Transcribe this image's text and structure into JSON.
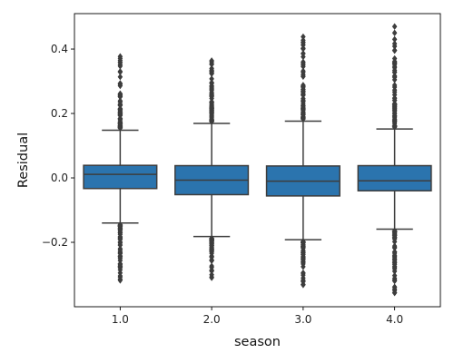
{
  "chart_data": {
    "type": "boxplot",
    "title": "",
    "xlabel": "season",
    "ylabel": "Residual",
    "categories": [
      "1.0",
      "2.0",
      "3.0",
      "4.0"
    ],
    "ylim": [
      -0.4,
      0.51
    ],
    "yticks": [
      -0.2,
      0.0,
      0.2,
      0.4
    ],
    "ytick_labels": [
      "−0.2",
      "0.0",
      "0.2",
      "0.4"
    ],
    "grid": false,
    "legend": "none",
    "box_color": "#2b74ae",
    "line_color": "#3d3d3d",
    "boxes": [
      {
        "category": "1.0",
        "q1": -0.033,
        "median": 0.011,
        "q3": 0.039,
        "whisker_low": -0.14,
        "whisker_high": 0.148,
        "flier_min": -0.318,
        "flier_max": 0.377
      },
      {
        "category": "2.0",
        "q1": -0.052,
        "median": -0.007,
        "q3": 0.038,
        "whisker_low": -0.182,
        "whisker_high": 0.169,
        "flier_min": -0.31,
        "flier_max": 0.364
      },
      {
        "category": "3.0",
        "q1": -0.056,
        "median": -0.01,
        "q3": 0.037,
        "whisker_low": -0.192,
        "whisker_high": 0.176,
        "flier_min": -0.332,
        "flier_max": 0.438
      },
      {
        "category": "4.0",
        "q1": -0.04,
        "median": -0.009,
        "q3": 0.038,
        "whisker_low": -0.159,
        "whisker_high": 0.152,
        "flier_min": -0.357,
        "flier_max": 0.47
      }
    ]
  }
}
